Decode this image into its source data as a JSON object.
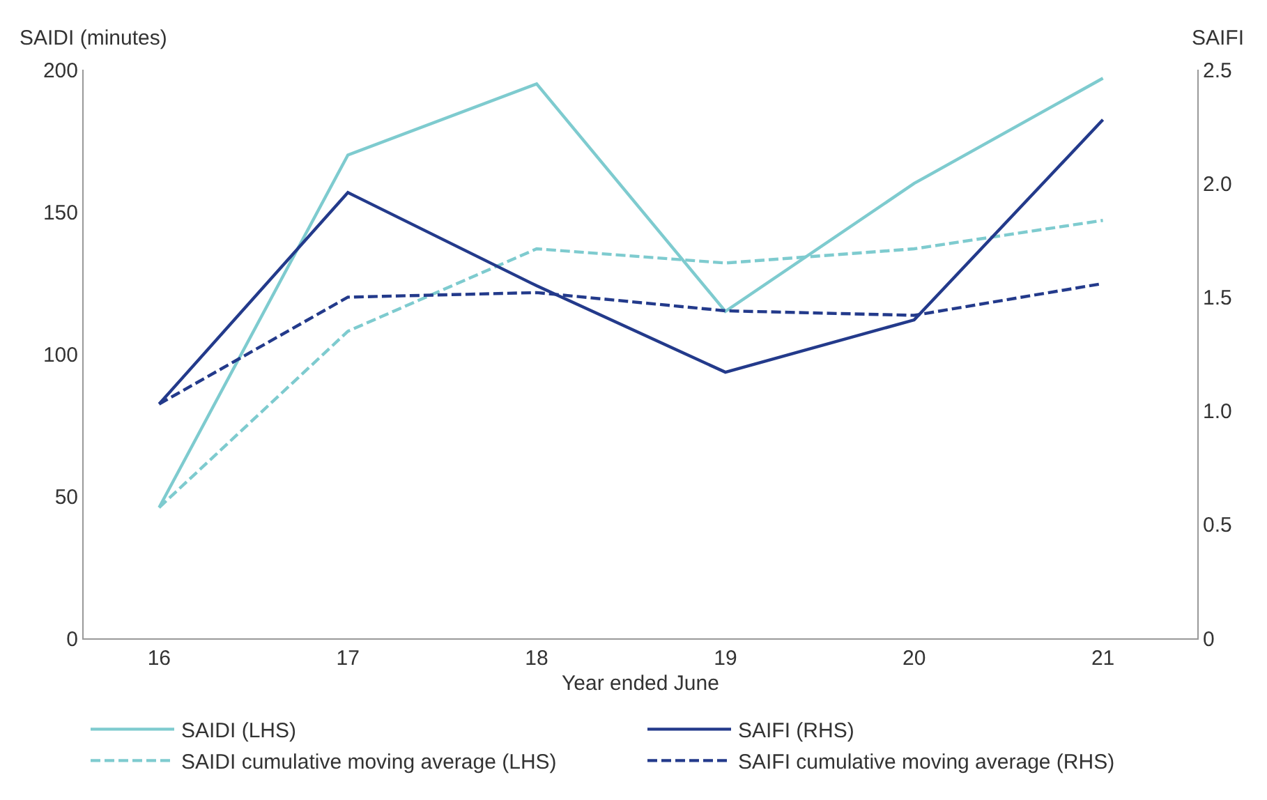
{
  "chart_data": {
    "type": "line",
    "xlabel": "Year ended June",
    "ylabel": "SAIDI (minutes)",
    "y2label": "SAIFI",
    "categories": [
      "16",
      "17",
      "18",
      "19",
      "20",
      "21"
    ],
    "series": [
      {
        "name": "SAIDI (LHS)",
        "color": "#7ecbcf",
        "line_style": "solid",
        "values": [
          46,
          170,
          195,
          115,
          160,
          197
        ]
      },
      {
        "name": "SAIFI (RHS)",
        "color": "#233a8b",
        "line_style": "solid",
        "axis": "y2",
        "values": [
          1.03,
          1.96,
          1.55,
          1.17,
          1.4,
          2.28
        ]
      },
      {
        "name": "SAIDI cumulative moving average (LHS)",
        "color": "#7ecbcf",
        "line_style": "dashed",
        "values": [
          46,
          108,
          137,
          132,
          137,
          147
        ]
      },
      {
        "name": "SAIFI cumulative moving average (RHS)",
        "color": "#233a8b",
        "line_style": "dashed",
        "axis": "y2",
        "values": [
          1.03,
          1.5,
          1.52,
          1.44,
          1.42,
          1.56
        ]
      }
    ],
    "ylim": [
      0,
      200
    ],
    "yticks": [
      0,
      50,
      100,
      150,
      200
    ],
    "y2lim": [
      0,
      2.5
    ],
    "y2ticks": [
      {
        "value": 0,
        "label": "0"
      },
      {
        "value": 0.5,
        "label": "0.5"
      },
      {
        "value": 1,
        "label": "1.0"
      },
      {
        "value": 1.5,
        "label": "1.5"
      },
      {
        "value": 2,
        "label": "2.0"
      },
      {
        "value": 2.5,
        "label": "2.5"
      }
    ],
    "legend": "bottom",
    "marker": "none"
  }
}
